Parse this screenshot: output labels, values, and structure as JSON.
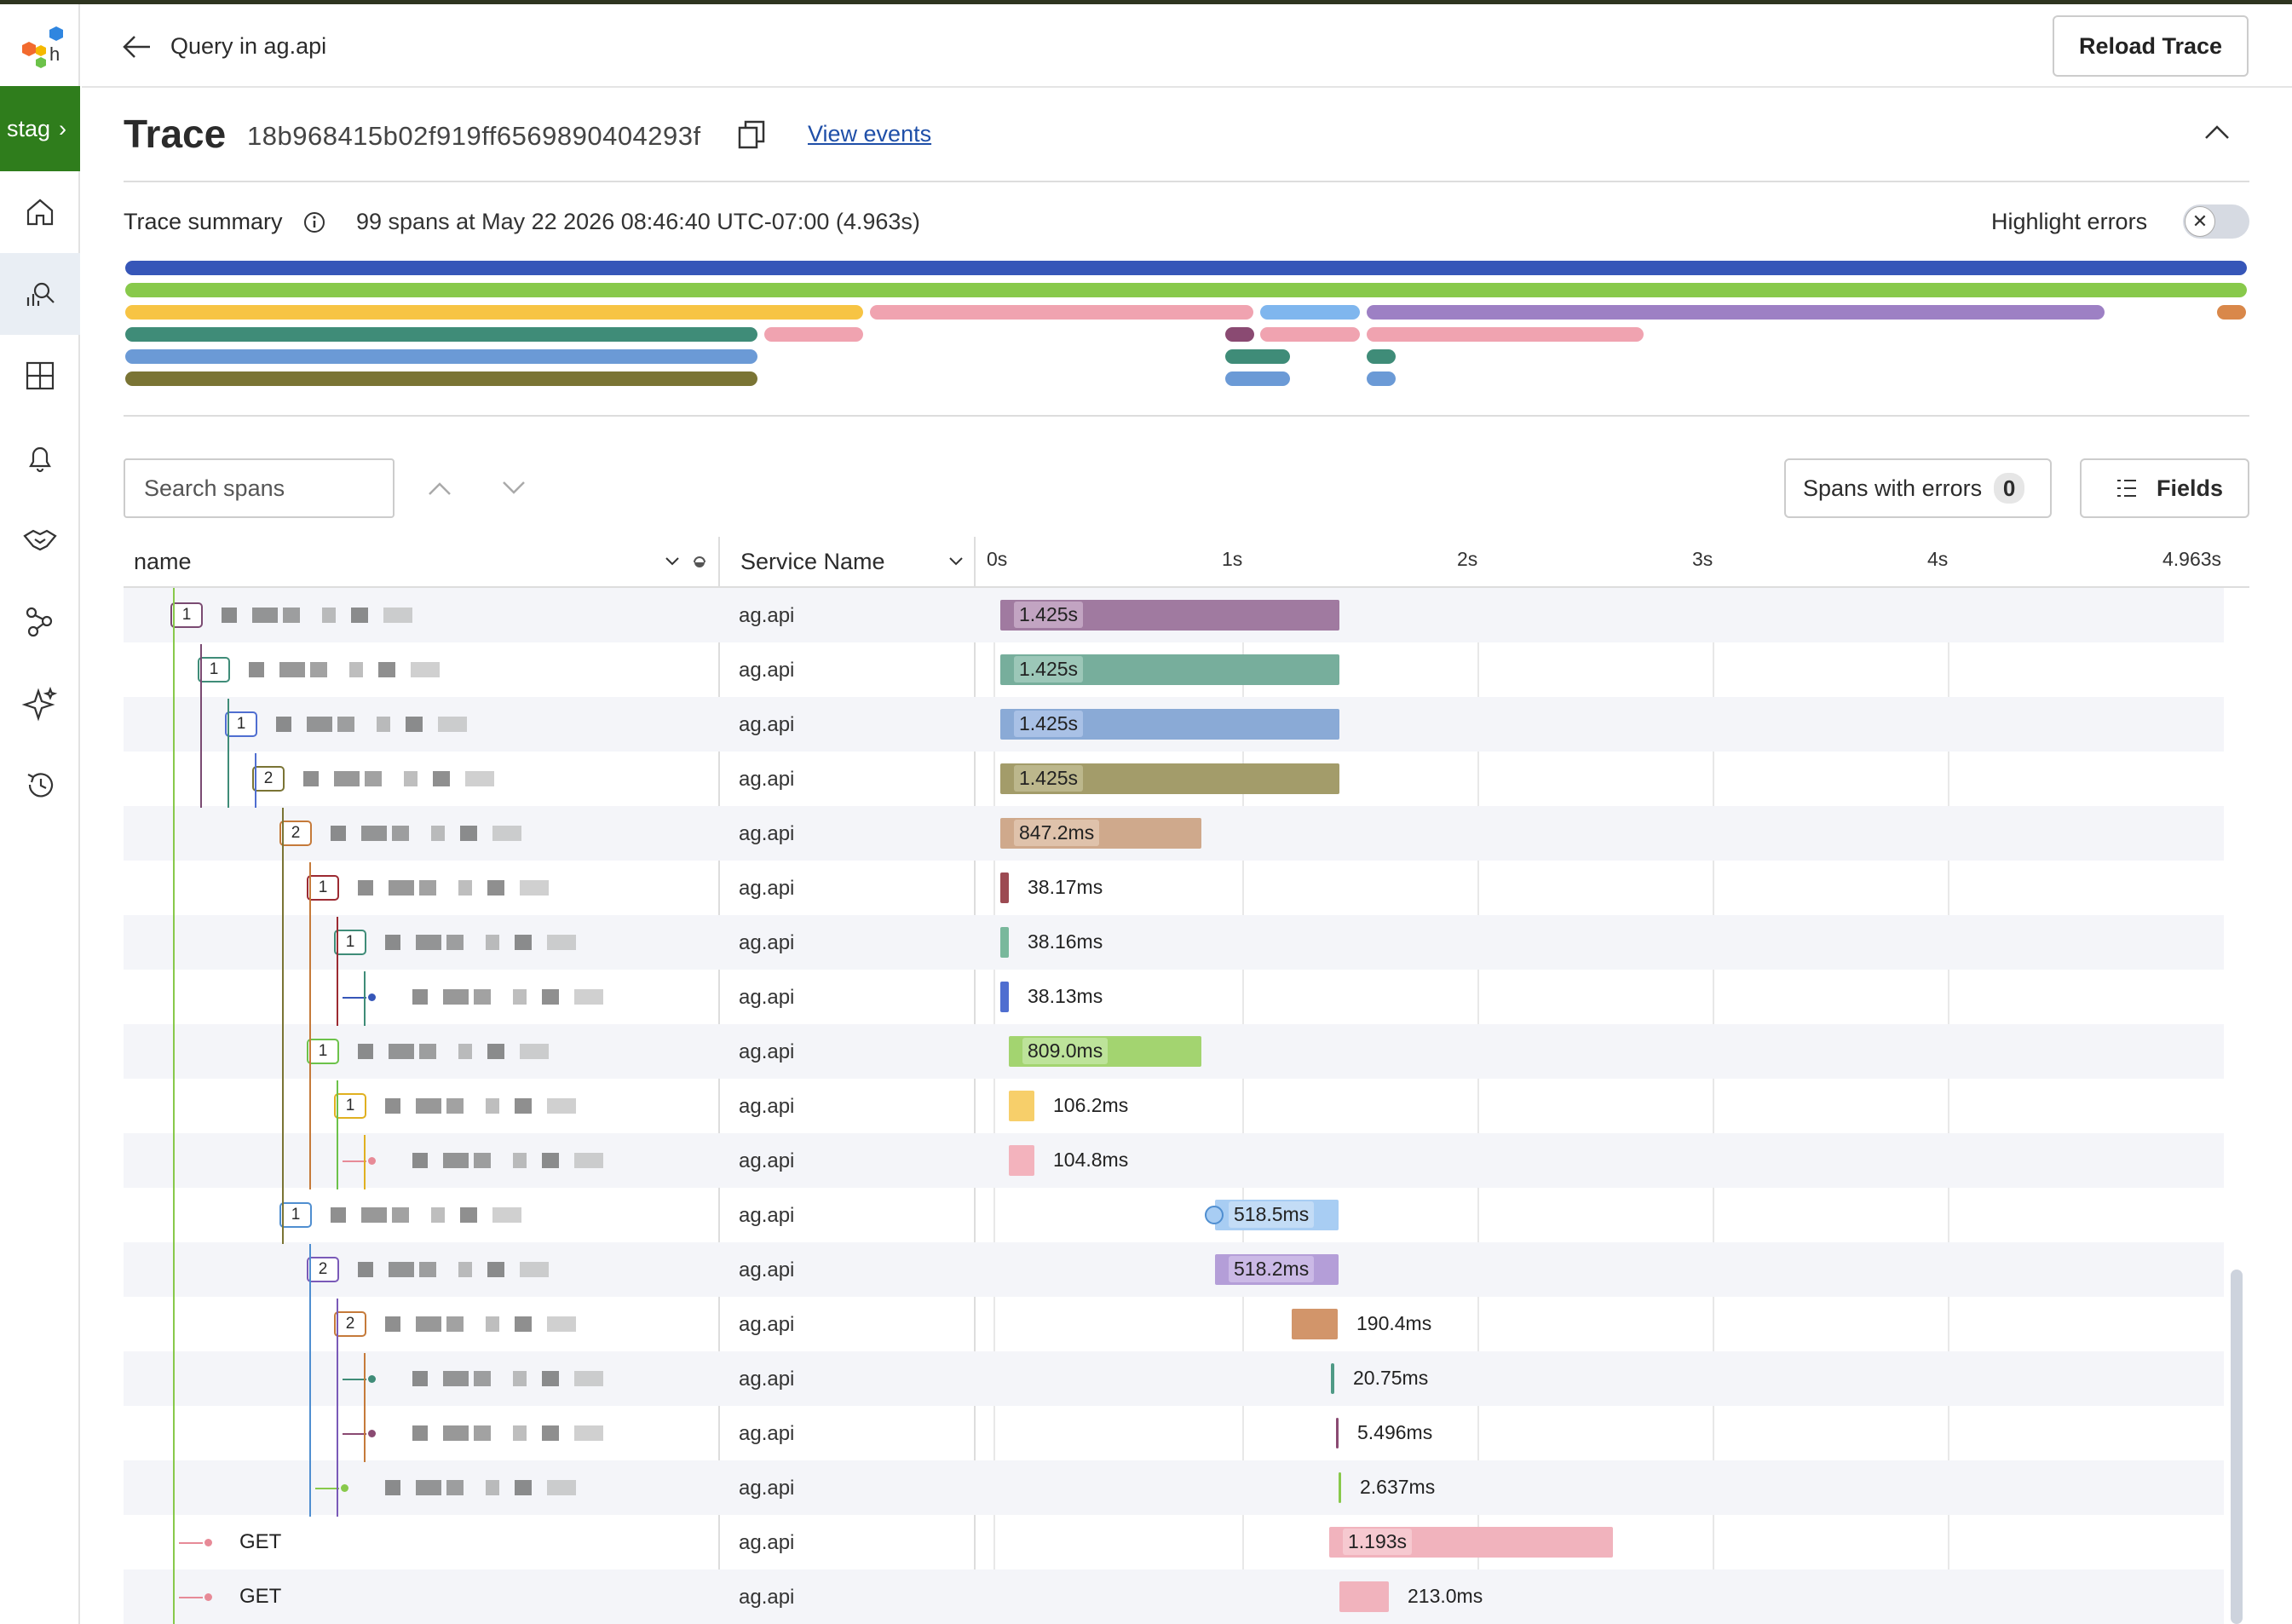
{
  "app": {
    "env_label": "stag",
    "env_chevron": "›"
  },
  "header": {
    "back_title": "Query in ag.api",
    "reload_label": "Reload Trace"
  },
  "trace": {
    "title": "Trace",
    "id": "18b968415b02f919ff6569890404293f",
    "view_events": "View events"
  },
  "summary": {
    "label": "Trace summary",
    "text": "99 spans at May 22 2026 08:46:40 UTC-07:00 (4.963s)",
    "highlight_errors_label": "Highlight errors",
    "highlight_errors_on": false
  },
  "toolbar": {
    "search_placeholder": "Search spans",
    "spans_with_errors_label": "Spans with errors",
    "spans_with_errors_count": "0",
    "fields_label": "Fields"
  },
  "columns": {
    "name": "name",
    "service": "Service Name"
  },
  "timeline": {
    "ticks": [
      "0s",
      "1s",
      "2s",
      "3s",
      "4s",
      "4.963s"
    ],
    "total_seconds": 4.963
  },
  "colors": {
    "accent_green": "#2f7d1c",
    "link": "#1f4fa8"
  },
  "icons": [
    "logo-icon",
    "home-icon",
    "query-icon",
    "board-icon",
    "bell-icon",
    "handshake-icon",
    "graph-icon",
    "sparkle-icon",
    "history-icon",
    "back-arrow-icon",
    "copy-icon",
    "chevron-up-icon",
    "info-icon",
    "close-icon",
    "list-icon"
  ],
  "spans": [
    {
      "count": "1",
      "service": "ag.api",
      "duration": "1.425s"
    },
    {
      "count": "1",
      "service": "ag.api",
      "duration": "1.425s"
    },
    {
      "count": "1",
      "service": "ag.api",
      "duration": "1.425s"
    },
    {
      "count": "2",
      "service": "ag.api",
      "duration": "1.425s"
    },
    {
      "count": "2",
      "service": "ag.api",
      "duration": "847.2ms"
    },
    {
      "count": "1",
      "service": "ag.api",
      "duration": "38.17ms"
    },
    {
      "count": "1",
      "service": "ag.api",
      "duration": "38.16ms"
    },
    {
      "count": "",
      "service": "ag.api",
      "duration": "38.13ms"
    },
    {
      "count": "1",
      "service": "ag.api",
      "duration": "809.0ms"
    },
    {
      "count": "1",
      "service": "ag.api",
      "duration": "106.2ms"
    },
    {
      "count": "",
      "service": "ag.api",
      "duration": "104.8ms"
    },
    {
      "count": "1",
      "service": "ag.api",
      "duration": "518.5ms"
    },
    {
      "count": "2",
      "service": "ag.api",
      "duration": "518.2ms"
    },
    {
      "count": "2",
      "service": "ag.api",
      "duration": "190.4ms"
    },
    {
      "count": "",
      "service": "ag.api",
      "duration": "20.75ms"
    },
    {
      "count": "",
      "service": "ag.api",
      "duration": "5.496ms"
    },
    {
      "count": "",
      "service": "ag.api",
      "duration": "2.637ms"
    },
    {
      "name": "GET",
      "count": "",
      "service": "ag.api",
      "duration": "1.193s"
    },
    {
      "name": "GET",
      "count": "",
      "service": "ag.api",
      "duration": "213.0ms"
    }
  ]
}
